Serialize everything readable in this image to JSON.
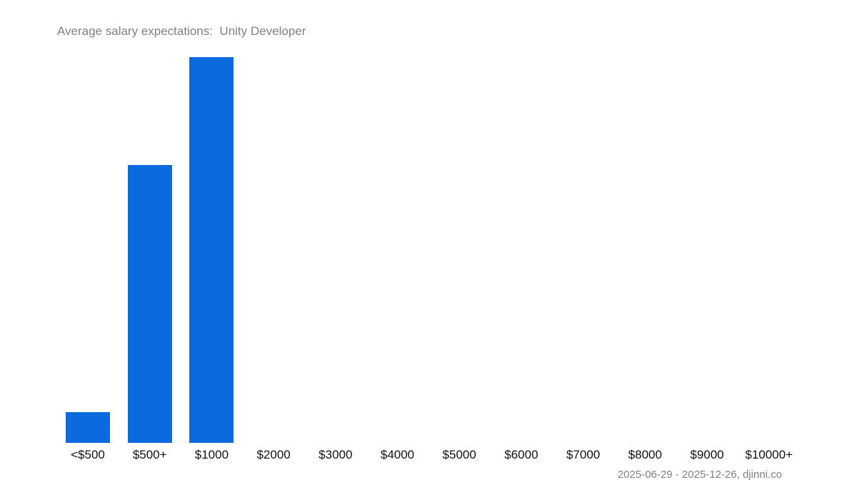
{
  "title": "Average salary expectations:  Unity Developer",
  "footer": "2025-06-29 - 2025-12-26, djinni.co",
  "colors": {
    "bar": "#0b6bde",
    "title": "#808080",
    "label": "#111111"
  },
  "chart_data": {
    "type": "bar",
    "title": "Average salary expectations:  Unity Developer",
    "xlabel": "",
    "ylabel": "",
    "categories": [
      "<$500",
      "$500+",
      "$1000",
      "$2000",
      "$3000",
      "$4000",
      "$5000",
      "$6000",
      "$7000",
      "$8000",
      "$9000",
      "$10000+"
    ],
    "values": [
      8,
      72,
      100,
      0,
      0,
      0,
      0,
      0,
      0,
      0,
      0,
      0
    ],
    "value_unit": "relative % of tallest bar (no y-axis shown)",
    "ylim": [
      0,
      100
    ],
    "grid": false,
    "legend": null,
    "annotations": [
      "2025-06-29 - 2025-12-26, djinni.co"
    ]
  }
}
